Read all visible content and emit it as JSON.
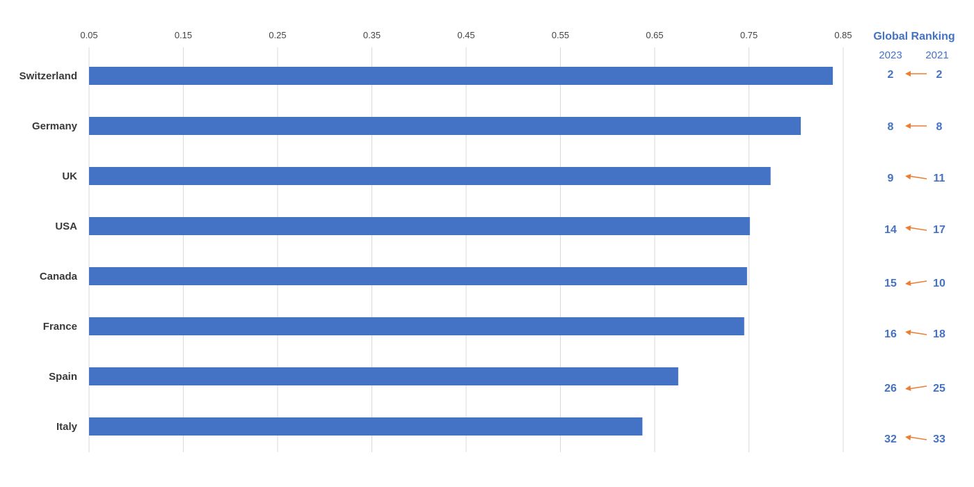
{
  "chart_data": {
    "type": "bar",
    "orientation": "horizontal",
    "categories": [
      "Switzerland",
      "Germany",
      "UK",
      "USA",
      "Canada",
      "France",
      "Spain",
      "Italy"
    ],
    "values": [
      0.839,
      0.805,
      0.773,
      0.751,
      0.748,
      0.745,
      0.675,
      0.637
    ],
    "xlim": [
      0.05,
      0.85
    ],
    "xticks": [
      "0.05",
      "0.15",
      "0.25",
      "0.35",
      "0.45",
      "0.55",
      "0.65",
      "0.75",
      "0.85"
    ],
    "grid": true,
    "bar_color": "#4472C4",
    "ranking": {
      "title": "Global Ranking",
      "year_2023": "2023",
      "year_2021": "2021",
      "text_color": "#4472C4",
      "arrow_color": "#ED7D31",
      "rows": [
        {
          "y2023": "2",
          "y2021": "2"
        },
        {
          "y2023": "8",
          "y2021": "8"
        },
        {
          "y2023": "9",
          "y2021": "11"
        },
        {
          "y2023": "14",
          "y2021": "17"
        },
        {
          "y2023": "15",
          "y2021": "10"
        },
        {
          "y2023": "16",
          "y2021": "18"
        },
        {
          "y2023": "26",
          "y2021": "25"
        },
        {
          "y2023": "32",
          "y2021": "33"
        }
      ]
    }
  }
}
